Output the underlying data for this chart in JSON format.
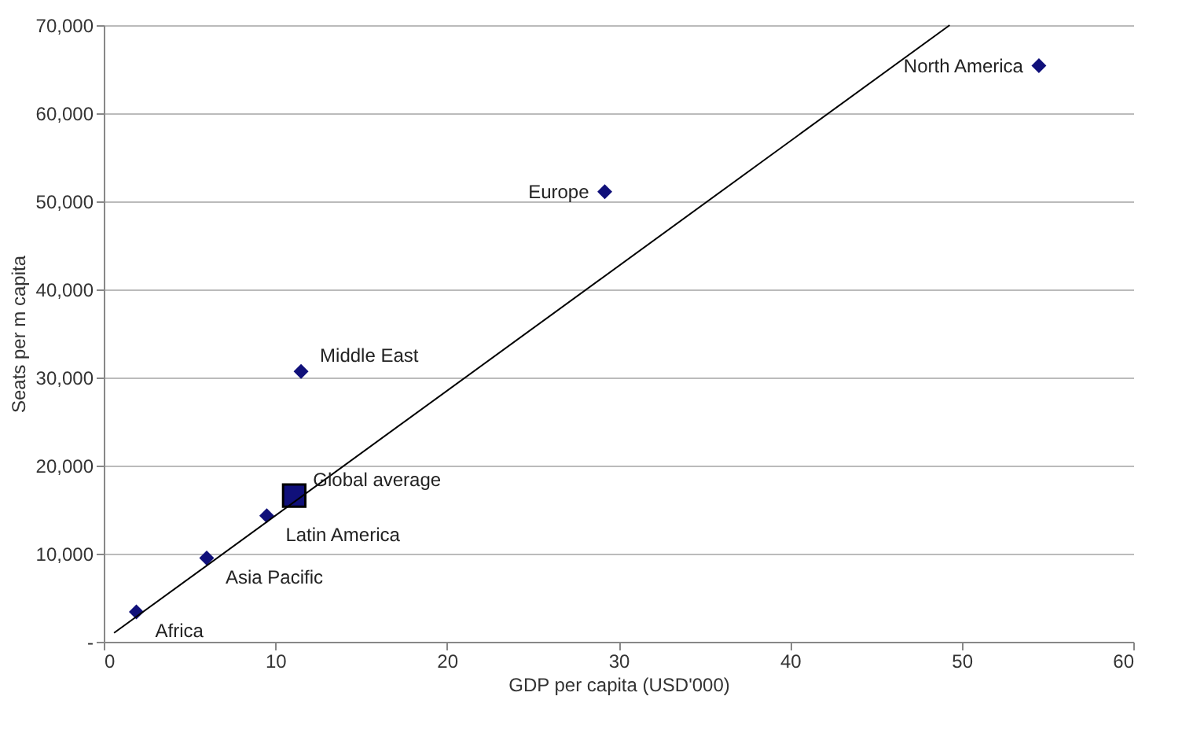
{
  "chart_data": {
    "type": "scatter",
    "xlabel": "GDP per capita (USD'000)",
    "ylabel": "Seats per m capita",
    "xlim": [
      0,
      60
    ],
    "xticks": [
      0,
      10,
      20,
      30,
      40,
      50,
      60
    ],
    "ylim": [
      0,
      70000
    ],
    "yticks": [
      {
        "value": 0,
        "label": "-"
      },
      {
        "value": 10000,
        "label": "10,000"
      },
      {
        "value": 20000,
        "label": "20,000"
      },
      {
        "value": 30000,
        "label": "30,000"
      },
      {
        "value": 40000,
        "label": "40,000"
      },
      {
        "value": 50000,
        "label": "50,000"
      },
      {
        "value": 60000,
        "label": "60,000"
      },
      {
        "value": 70000,
        "label": "70,000"
      }
    ],
    "grid": "y",
    "series": [
      {
        "marker": "diamond",
        "color": "#10107a",
        "x": [
          1.9,
          6.0,
          9.5,
          11.5,
          29.2,
          54.5
        ],
        "values": [
          3400,
          9500,
          14300,
          30700,
          51100,
          65400
        ]
      },
      {
        "marker": "square",
        "color": "#10107a",
        "x": [
          11.1
        ],
        "values": [
          16600
        ]
      },
      {
        "type": "line",
        "line_style": "solid",
        "color": "#000000",
        "x": [
          0.6,
          49.3
        ],
        "values": [
          1000,
          70000
        ]
      }
    ],
    "annotations": [
      {
        "text": "Africa",
        "x": 1.9,
        "y": 3400
      },
      {
        "text": "Asia Pacific",
        "x": 6.0,
        "y": 9500
      },
      {
        "text": "Latin America",
        "x": 9.5,
        "y": 14300
      },
      {
        "text": "Global average",
        "x": 11.1,
        "y": 16600
      },
      {
        "text": "Middle East",
        "x": 11.5,
        "y": 30700
      },
      {
        "text": "Europe",
        "x": 29.2,
        "y": 51100
      },
      {
        "text": "North America",
        "x": 54.5,
        "y": 65400
      }
    ]
  }
}
